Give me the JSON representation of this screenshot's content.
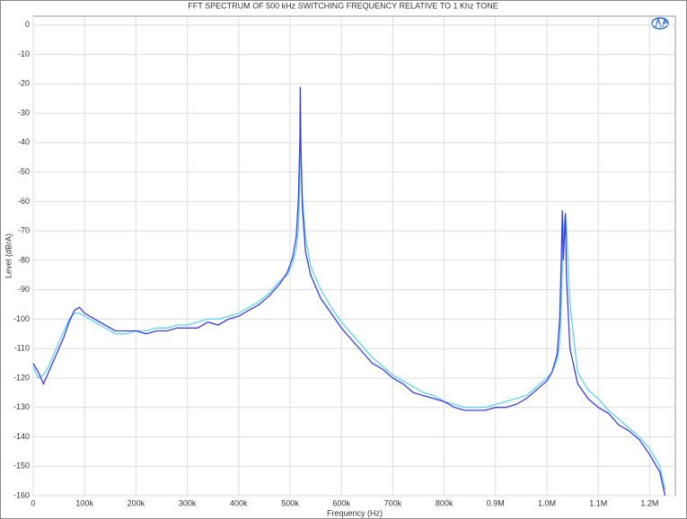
{
  "chart_data": {
    "type": "line",
    "title": "FFT SPECTRUM OF 500 kHz SWITCHING FREQUENCY RELATIVE TO 1 Khz TONE",
    "x_label": "Frequency (Hz)",
    "y_label": "Level (dBrA)",
    "x": [
      0,
      10000,
      20000,
      30000,
      40000,
      50000,
      60000,
      70000,
      80000,
      90000,
      100000,
      120000,
      140000,
      160000,
      180000,
      200000,
      220000,
      240000,
      260000,
      280000,
      300000,
      320000,
      340000,
      360000,
      380000,
      400000,
      420000,
      440000,
      460000,
      480000,
      495000,
      505000,
      512000,
      516000,
      519000,
      520000,
      521000,
      524000,
      530000,
      540000,
      560000,
      580000,
      600000,
      620000,
      640000,
      660000,
      680000,
      700000,
      720000,
      740000,
      760000,
      780000,
      800000,
      820000,
      840000,
      860000,
      880000,
      900000,
      920000,
      940000,
      960000,
      980000,
      1000000,
      1010000,
      1020000,
      1025000,
      1028000,
      1030000,
      1032000,
      1036000,
      1038000,
      1045000,
      1060000,
      1080000,
      1100000,
      1120000,
      1140000,
      1160000,
      1180000,
      1200000,
      1220000,
      1230000
    ],
    "series": [
      {
        "color": "#3c3ce0",
        "values": [
          -115,
          -118,
          -122,
          -118,
          -114,
          -110,
          -106,
          -101,
          -97,
          -96,
          -98,
          -100,
          -102,
          -104,
          -104,
          -104,
          -105,
          -104,
          -104,
          -103,
          -103,
          -103,
          -101,
          -102,
          -100,
          -99,
          -97,
          -95,
          -92,
          -88,
          -84,
          -79,
          -72,
          -60,
          -40,
          -21,
          -40,
          -62,
          -77,
          -85,
          -93,
          -98,
          -103,
          -107,
          -111,
          -115,
          -117,
          -120,
          -122,
          -125,
          -126,
          -127,
          -128,
          -130,
          -131,
          -131,
          -131,
          -130,
          -130,
          -129,
          -127,
          -124,
          -121,
          -118,
          -112,
          -100,
          -80,
          -63,
          -80,
          -64,
          -85,
          -110,
          -122,
          -127,
          -130,
          -132,
          -136,
          -138,
          -141,
          -146,
          -152,
          -160
        ]
      },
      {
        "color": "#5fd3ef",
        "values": [
          -116,
          -120,
          -119,
          -116,
          -112,
          -108,
          -104,
          -100,
          -98,
          -98,
          -99,
          -101,
          -103,
          -105,
          -105,
          -104,
          -104,
          -103,
          -103,
          -102,
          -102,
          -101,
          -100,
          -100,
          -99,
          -98,
          -96,
          -94,
          -91,
          -87,
          -85,
          -81,
          -76,
          -70,
          -55,
          -35,
          -45,
          -58,
          -72,
          -82,
          -90,
          -96,
          -101,
          -105,
          -109,
          -113,
          -116,
          -119,
          -121,
          -123,
          -125,
          -126,
          -128,
          -129,
          -130,
          -130,
          -130,
          -129,
          -128,
          -127,
          -126,
          -123,
          -120,
          -118,
          -114,
          -108,
          -96,
          -82,
          -70,
          -64,
          -68,
          -95,
          -118,
          -124,
          -127,
          -131,
          -134,
          -137,
          -140,
          -144,
          -150,
          -158
        ]
      }
    ],
    "xlim": [
      0,
      1250000
    ],
    "ylim": [
      -160,
      3
    ],
    "xticks": [
      0,
      {
        "value": 100000,
        "label": "100k"
      },
      {
        "value": 200000,
        "label": "200k"
      },
      {
        "value": 300000,
        "label": "300k"
      },
      {
        "value": 400000,
        "label": "400k"
      },
      {
        "value": 500000,
        "label": "500k"
      },
      {
        "value": 600000,
        "label": "600k"
      },
      {
        "value": 700000,
        "label": "700k"
      },
      {
        "value": 800000,
        "label": "800k"
      },
      {
        "value": 900000,
        "label": "0.9M"
      },
      {
        "value": 1000000,
        "label": "1.0M"
      },
      {
        "value": 1100000,
        "label": "1.1M"
      },
      {
        "value": 1200000,
        "label": "1.2M"
      }
    ],
    "yticks": [
      0,
      -10,
      -20,
      -30,
      -40,
      -50,
      -60,
      -70,
      -80,
      -90,
      -100,
      -110,
      -120,
      -130,
      -140,
      -150,
      -160
    ],
    "grid": true
  }
}
